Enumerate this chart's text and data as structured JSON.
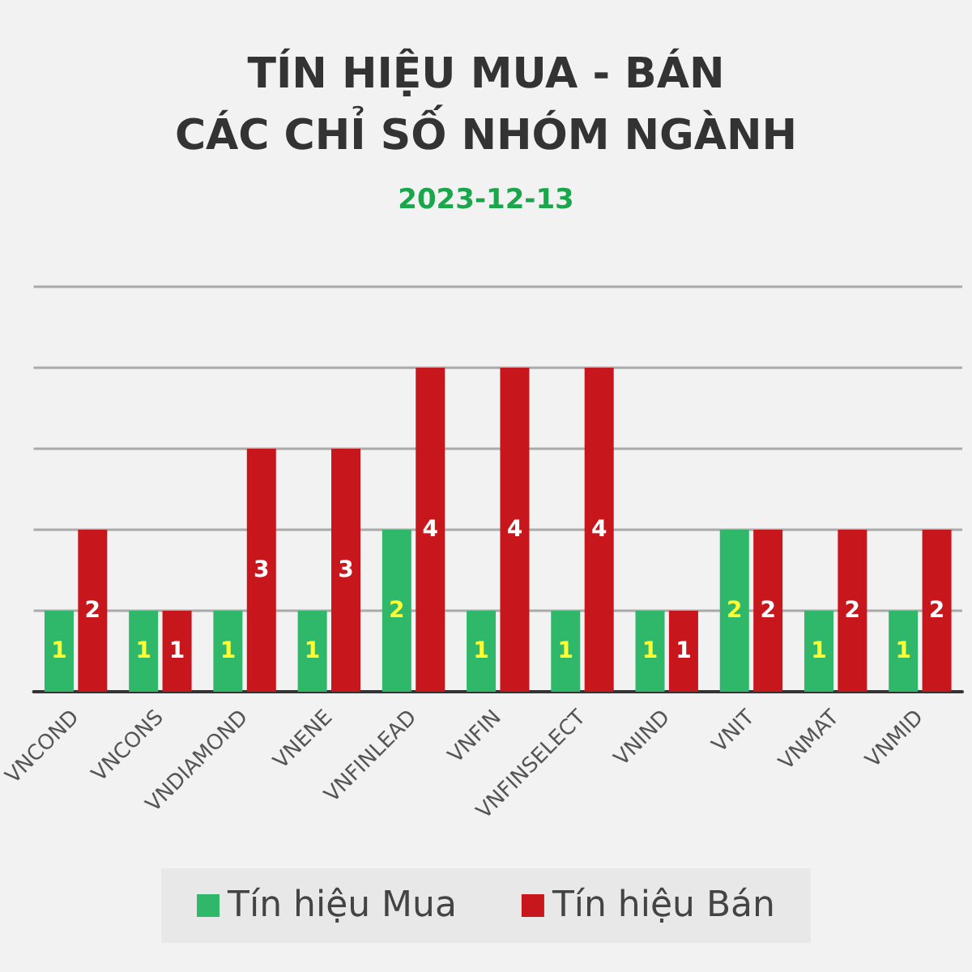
{
  "chart_data": {
    "type": "bar",
    "title": "TÍN HIỆU MUA - BÁN\nCÁC CHỈ SỐ NHÓM NGÀNH",
    "subtitle": "2023-12-13",
    "categories": [
      "VNCOND",
      "VNCONS",
      "VNDIAMOND",
      "VNENE",
      "VNFINLEAD",
      "VNFIN",
      "VNFINSELECT",
      "VNIND",
      "VNIT",
      "VNMAT",
      "VNMID"
    ],
    "series": [
      {
        "name": "Tín hiệu Mua",
        "color": "#2fb86a",
        "values": [
          1,
          1,
          1,
          1,
          2,
          1,
          1,
          1,
          2,
          1,
          1
        ]
      },
      {
        "name": "Tín hiệu Bán",
        "color": "#c8161d",
        "values": [
          2,
          1,
          3,
          3,
          4,
          4,
          4,
          1,
          2,
          2,
          2
        ]
      }
    ],
    "ylim": [
      0,
      5
    ],
    "yticks": [
      {
        "value": 0,
        "label": null
      },
      {
        "value": 1,
        "label": null
      },
      {
        "value": 2,
        "label": null
      },
      {
        "value": 3,
        "label": null
      },
      {
        "value": 4,
        "label": null
      },
      {
        "value": 5,
        "label": null
      }
    ],
    "grid": "y",
    "legend": "bottom",
    "data_labels": true,
    "tick_labels": "x"
  }
}
